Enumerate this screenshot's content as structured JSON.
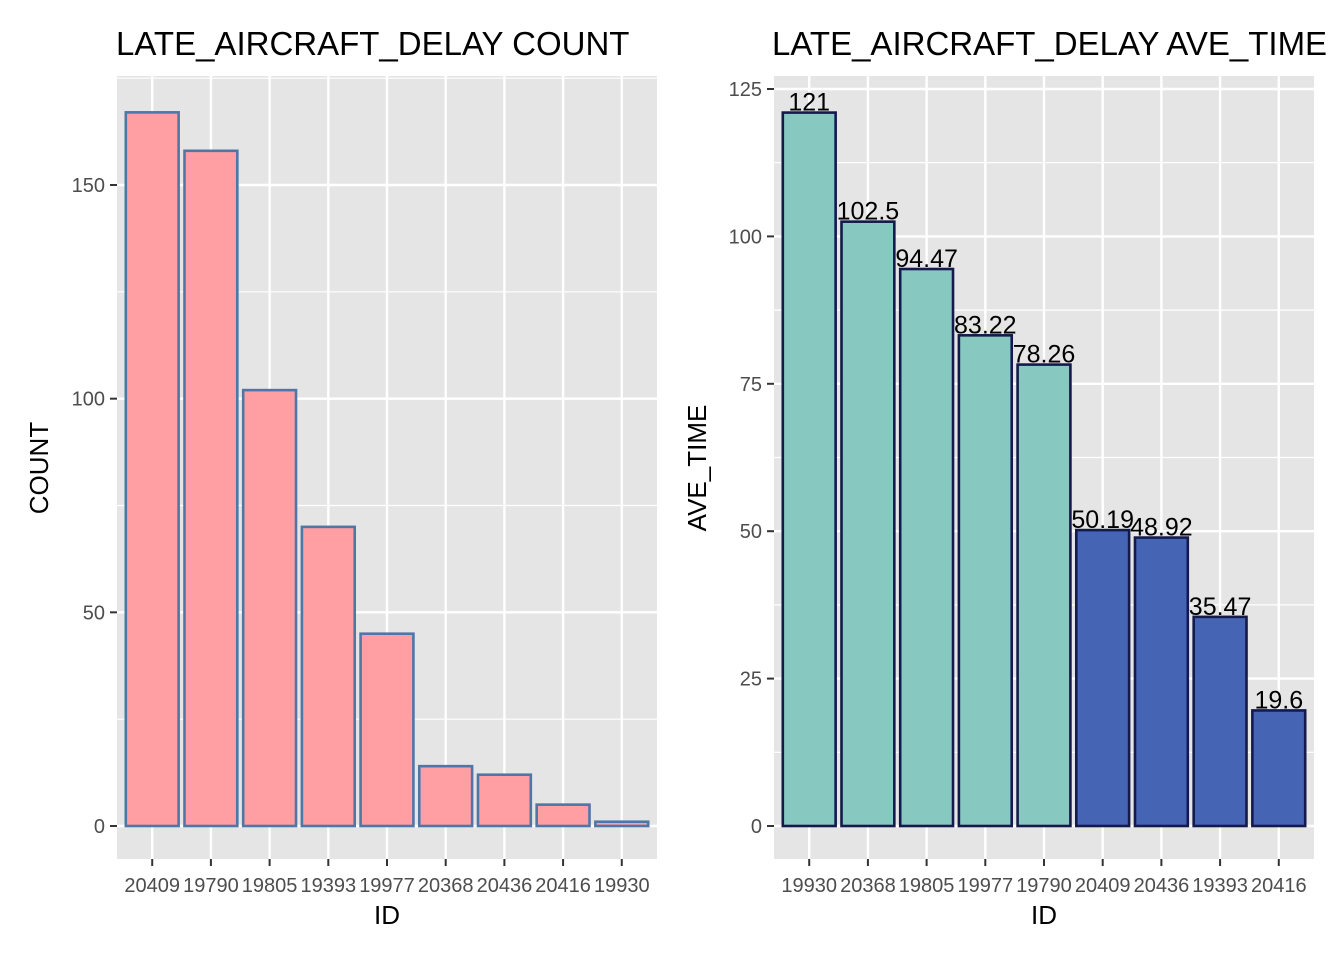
{
  "chart_data": [
    {
      "type": "bar",
      "title": "LATE_AIRCRAFT_DELAY COUNT",
      "xlabel": "ID",
      "ylabel": "COUNT",
      "categories": [
        "20409",
        "19790",
        "19805",
        "19393",
        "19977",
        "20368",
        "20436",
        "20416",
        "19930"
      ],
      "values": [
        167,
        158,
        102,
        70,
        45,
        14,
        12,
        5,
        1
      ],
      "ylim": [
        0,
        175
      ],
      "yticks": [
        "0",
        "50",
        "100",
        "150"
      ],
      "grid": true,
      "fill_color": "#FF9FA3",
      "border_color": "#4E76A6",
      "panel_color": "#E5E5E5"
    },
    {
      "type": "bar",
      "title": "LATE_AIRCRAFT_DELAY AVE_TIME",
      "xlabel": "ID",
      "ylabel": "AVE_TIME",
      "categories": [
        "19930",
        "20368",
        "19805",
        "19977",
        "19790",
        "20409",
        "20436",
        "19393",
        "20416"
      ],
      "values": [
        121,
        102.5,
        94.47,
        83.22,
        78.26,
        50.19,
        48.92,
        35.47,
        19.6
      ],
      "data_labels": [
        "121",
        "102.5",
        "94.47",
        "83.22",
        "78.26",
        "50.19",
        "48.92",
        "35.47",
        "19.6"
      ],
      "ylim": [
        0,
        126
      ],
      "yticks": [
        "0",
        "25",
        "50",
        "75",
        "100",
        "125"
      ],
      "grid": true,
      "fill_colors": [
        "#87C8C1",
        "#87C8C1",
        "#87C8C1",
        "#87C8C1",
        "#87C8C1",
        "#4664B4",
        "#4664B4",
        "#4664B4",
        "#4664B4"
      ],
      "border_color": "#141A4A",
      "panel_color": "#E5E5E5"
    }
  ]
}
